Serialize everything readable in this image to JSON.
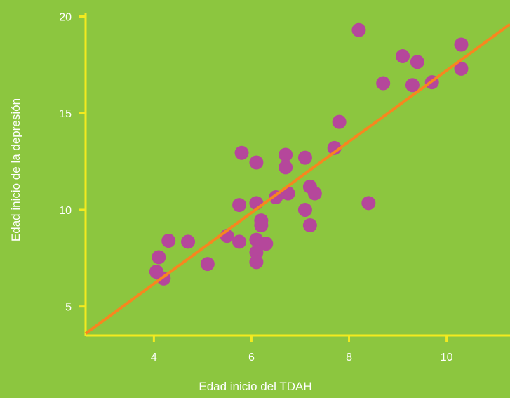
{
  "colors": {
    "background": "#8cc63f",
    "axis": "#f2ea1f",
    "points": "#b5479b",
    "regression_line": "#f7861f",
    "text": "#ffffff"
  },
  "chart_data": {
    "type": "scatter",
    "title": "",
    "xlabel": "Edad inicio del TDAH",
    "ylabel": "Edad inicio de la depresión",
    "xlim": [
      2.6,
      11.3
    ],
    "ylim": [
      3.5,
      20.2
    ],
    "xticks": [
      4,
      6,
      8,
      10
    ],
    "yticks": [
      5,
      10,
      15,
      20
    ],
    "grid": false,
    "legend": "none",
    "points": [
      {
        "x": 4.05,
        "y": 6.8
      },
      {
        "x": 4.1,
        "y": 7.55
      },
      {
        "x": 4.2,
        "y": 6.45
      },
      {
        "x": 4.3,
        "y": 8.4
      },
      {
        "x": 4.7,
        "y": 8.35
      },
      {
        "x": 5.1,
        "y": 7.2
      },
      {
        "x": 5.5,
        "y": 8.65
      },
      {
        "x": 5.75,
        "y": 8.35
      },
      {
        "x": 5.75,
        "y": 10.25
      },
      {
        "x": 5.8,
        "y": 12.95
      },
      {
        "x": 6.1,
        "y": 12.45
      },
      {
        "x": 6.1,
        "y": 10.35
      },
      {
        "x": 6.1,
        "y": 8.45
      },
      {
        "x": 6.1,
        "y": 7.8
      },
      {
        "x": 6.1,
        "y": 7.3
      },
      {
        "x": 6.2,
        "y": 9.45
      },
      {
        "x": 6.2,
        "y": 9.2
      },
      {
        "x": 6.3,
        "y": 8.25
      },
      {
        "x": 6.5,
        "y": 10.65
      },
      {
        "x": 6.7,
        "y": 12.85
      },
      {
        "x": 6.7,
        "y": 12.2
      },
      {
        "x": 6.75,
        "y": 10.85
      },
      {
        "x": 7.1,
        "y": 12.7
      },
      {
        "x": 7.1,
        "y": 10.0
      },
      {
        "x": 7.2,
        "y": 11.2
      },
      {
        "x": 7.2,
        "y": 9.2
      },
      {
        "x": 7.3,
        "y": 10.85
      },
      {
        "x": 7.7,
        "y": 13.2
      },
      {
        "x": 7.8,
        "y": 14.55
      },
      {
        "x": 8.2,
        "y": 19.3
      },
      {
        "x": 8.4,
        "y": 10.35
      },
      {
        "x": 8.7,
        "y": 16.55
      },
      {
        "x": 9.1,
        "y": 17.95
      },
      {
        "x": 9.3,
        "y": 16.45
      },
      {
        "x": 9.4,
        "y": 17.65
      },
      {
        "x": 9.7,
        "y": 16.6
      },
      {
        "x": 10.3,
        "y": 18.55
      },
      {
        "x": 10.3,
        "y": 17.3
      }
    ],
    "regression_line": {
      "x": [
        2.6,
        11.3
      ],
      "y": [
        3.6,
        19.6
      ]
    }
  }
}
